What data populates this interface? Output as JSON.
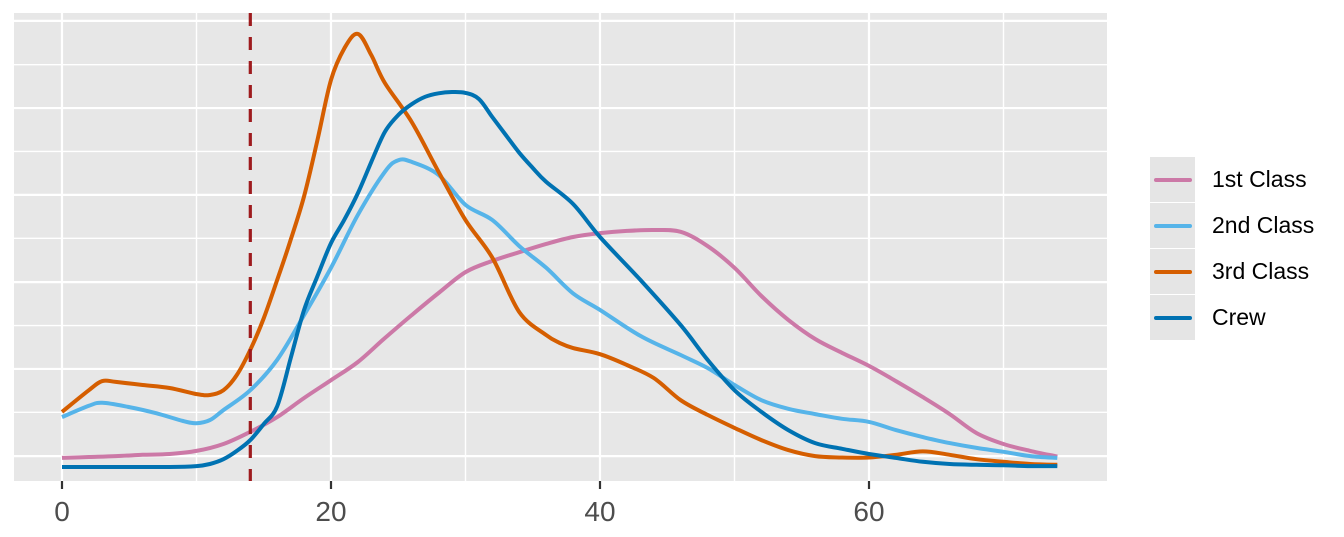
{
  "figure": {
    "background": "#FFFFFF",
    "panel_bg": "#E7E7E7",
    "grid_color": "#FFFFFF",
    "axis_text_color": "#4D4D4D",
    "tick_color": "#333333",
    "legend_key_bg": "#E5E5E5"
  },
  "chart_data": {
    "type": "line",
    "subtype": "kernel-density-curves",
    "title": "",
    "xlabel": "",
    "ylabel": "",
    "x_ticks": [
      0,
      20,
      40,
      60
    ],
    "x_tick_labels": [
      "0",
      "20",
      "40",
      "60"
    ],
    "x_minor_gridlines": [
      10,
      30,
      50,
      70
    ],
    "x_domain": [
      -3.57,
      77.7
    ],
    "y_domain": [
      -0.032,
      1.046
    ],
    "y_units": "relative density (y axis has no tick labels; 1.0 = 3rd Class peak)",
    "y_gridlines_major": [
      0.025,
      0.226,
      0.426,
      0.627,
      0.827,
      1.028
    ],
    "y_gridlines_minor": [
      0.126,
      0.326,
      0.527,
      0.727,
      0.927
    ],
    "grid": "on",
    "legend_position": "right",
    "vline": {
      "x": 14,
      "color": "#9E1B1E",
      "style": "dashed"
    },
    "series": [
      {
        "name": "1st Class",
        "color": "#CC79A7",
        "points": [
          [
            0,
            0.021
          ],
          [
            2,
            0.023
          ],
          [
            4,
            0.025
          ],
          [
            6,
            0.028
          ],
          [
            8,
            0.03
          ],
          [
            10,
            0.037
          ],
          [
            12,
            0.053
          ],
          [
            14,
            0.081
          ],
          [
            16,
            0.115
          ],
          [
            18,
            0.159
          ],
          [
            20,
            0.2
          ],
          [
            22,
            0.242
          ],
          [
            24,
            0.297
          ],
          [
            26,
            0.35
          ],
          [
            28,
            0.401
          ],
          [
            30,
            0.449
          ],
          [
            32,
            0.475
          ],
          [
            34,
            0.495
          ],
          [
            36,
            0.514
          ],
          [
            38,
            0.53
          ],
          [
            40,
            0.539
          ],
          [
            42,
            0.544
          ],
          [
            44,
            0.546
          ],
          [
            46,
            0.542
          ],
          [
            48,
            0.509
          ],
          [
            50,
            0.459
          ],
          [
            52,
            0.394
          ],
          [
            54,
            0.339
          ],
          [
            56,
            0.295
          ],
          [
            58,
            0.263
          ],
          [
            60,
            0.233
          ],
          [
            62,
            0.198
          ],
          [
            64,
            0.161
          ],
          [
            66,
            0.122
          ],
          [
            68,
            0.078
          ],
          [
            70,
            0.053
          ],
          [
            72,
            0.037
          ],
          [
            74,
            0.024
          ]
        ]
      },
      {
        "name": "2nd Class",
        "color": "#56B4E9",
        "points": [
          [
            0,
            0.115
          ],
          [
            2,
            0.141
          ],
          [
            3,
            0.148
          ],
          [
            5,
            0.138
          ],
          [
            7,
            0.124
          ],
          [
            9,
            0.106
          ],
          [
            10,
            0.101
          ],
          [
            11,
            0.108
          ],
          [
            12,
            0.131
          ],
          [
            14,
            0.177
          ],
          [
            16,
            0.247
          ],
          [
            18,
            0.35
          ],
          [
            20,
            0.459
          ],
          [
            22,
            0.581
          ],
          [
            24,
            0.68
          ],
          [
            25,
            0.707
          ],
          [
            26,
            0.703
          ],
          [
            28,
            0.673
          ],
          [
            30,
            0.604
          ],
          [
            32,
            0.569
          ],
          [
            34,
            0.509
          ],
          [
            36,
            0.459
          ],
          [
            38,
            0.4
          ],
          [
            40,
            0.362
          ],
          [
            43,
            0.302
          ],
          [
            46,
            0.258
          ],
          [
            48,
            0.228
          ],
          [
            50,
            0.189
          ],
          [
            52,
            0.154
          ],
          [
            54,
            0.134
          ],
          [
            56,
            0.122
          ],
          [
            58,
            0.111
          ],
          [
            60,
            0.104
          ],
          [
            62,
            0.085
          ],
          [
            64,
            0.069
          ],
          [
            66,
            0.055
          ],
          [
            68,
            0.044
          ],
          [
            70,
            0.035
          ],
          [
            72,
            0.025
          ],
          [
            74,
            0.021
          ]
        ]
      },
      {
        "name": "3rd Class",
        "color": "#D55E00",
        "points": [
          [
            0,
            0.127
          ],
          [
            2,
            0.177
          ],
          [
            3,
            0.198
          ],
          [
            4,
            0.196
          ],
          [
            6,
            0.189
          ],
          [
            8,
            0.182
          ],
          [
            10,
            0.168
          ],
          [
            11,
            0.166
          ],
          [
            12,
            0.177
          ],
          [
            13,
            0.212
          ],
          [
            14,
            0.27
          ],
          [
            15,
            0.343
          ],
          [
            16,
            0.431
          ],
          [
            17,
            0.523
          ],
          [
            18,
            0.624
          ],
          [
            19,
            0.754
          ],
          [
            20,
            0.892
          ],
          [
            21,
            0.965
          ],
          [
            22,
            0.998
          ],
          [
            23,
            0.949
          ],
          [
            24,
            0.885
          ],
          [
            26,
            0.795
          ],
          [
            28,
            0.68
          ],
          [
            30,
            0.569
          ],
          [
            32,
            0.482
          ],
          [
            34,
            0.357
          ],
          [
            36,
            0.304
          ],
          [
            37,
            0.286
          ],
          [
            38,
            0.274
          ],
          [
            40,
            0.26
          ],
          [
            42,
            0.235
          ],
          [
            44,
            0.205
          ],
          [
            46,
            0.154
          ],
          [
            48,
            0.12
          ],
          [
            50,
            0.09
          ],
          [
            52,
            0.062
          ],
          [
            54,
            0.039
          ],
          [
            56,
            0.025
          ],
          [
            58,
            0.022
          ],
          [
            60,
            0.022
          ],
          [
            62,
            0.028
          ],
          [
            64,
            0.036
          ],
          [
            66,
            0.028
          ],
          [
            68,
            0.018
          ],
          [
            70,
            0.012
          ],
          [
            72,
            0.007
          ],
          [
            74,
            0.005
          ]
        ]
      },
      {
        "name": "Crew",
        "color": "#0072B2",
        "points": [
          [
            0,
            0
          ],
          [
            4,
            0
          ],
          [
            8,
            0
          ],
          [
            10,
            0.002
          ],
          [
            11,
            0.007
          ],
          [
            12,
            0.018
          ],
          [
            13,
            0.037
          ],
          [
            14,
            0.062
          ],
          [
            15,
            0.099
          ],
          [
            16,
            0.14
          ],
          [
            17,
            0.25
          ],
          [
            18,
            0.362
          ],
          [
            19,
            0.44
          ],
          [
            20,
            0.516
          ],
          [
            21,
            0.57
          ],
          [
            22,
            0.631
          ],
          [
            23,
            0.703
          ],
          [
            24,
            0.772
          ],
          [
            25,
            0.811
          ],
          [
            26,
            0.836
          ],
          [
            27,
            0.853
          ],
          [
            28,
            0.861
          ],
          [
            29,
            0.864
          ],
          [
            30,
            0.862
          ],
          [
            31,
            0.848
          ],
          [
            32,
            0.806
          ],
          [
            33,
            0.765
          ],
          [
            34,
            0.724
          ],
          [
            35,
            0.689
          ],
          [
            36,
            0.657
          ],
          [
            38,
            0.606
          ],
          [
            40,
            0.53
          ],
          [
            43,
            0.431
          ],
          [
            46,
            0.327
          ],
          [
            48,
            0.247
          ],
          [
            50,
            0.177
          ],
          [
            52,
            0.127
          ],
          [
            54,
            0.085
          ],
          [
            56,
            0.055
          ],
          [
            58,
            0.042
          ],
          [
            60,
            0.03
          ],
          [
            62,
            0.021
          ],
          [
            64,
            0.012
          ],
          [
            66,
            0.007
          ],
          [
            68,
            0.005
          ],
          [
            70,
            0.004
          ],
          [
            72,
            0.002
          ],
          [
            74,
            0.002
          ]
        ]
      }
    ]
  },
  "legend": {
    "entries": [
      {
        "label": "1st Class"
      },
      {
        "label": "2nd Class"
      },
      {
        "label": "3rd Class"
      },
      {
        "label": "Crew"
      }
    ]
  }
}
